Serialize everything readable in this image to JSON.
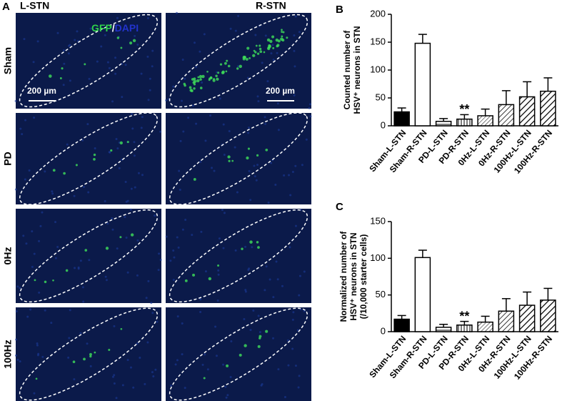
{
  "panel_a": {
    "letter": "A",
    "columns": [
      "L-STN",
      "R-STN"
    ],
    "rows": [
      "Sham",
      "PD",
      "0Hz",
      "100Hz"
    ],
    "stain": {
      "gfp": "GFP",
      "separator": "/",
      "dapi": "DAPI"
    },
    "scale_bars": [
      "200 µm",
      "200 µm"
    ]
  },
  "chart_data": [
    {
      "type": "bar",
      "panel": "B",
      "y_label": [
        "Counted number of",
        "HSV⁺ neurons in STN"
      ],
      "categories": [
        "Sham-L-STN",
        "Sham-R-STN",
        "PD-L-STN",
        "PD-R-STN",
        "0Hz-L-STN",
        "0Hz-R-STN",
        "100Hz-L-STN",
        "100Hz-R-STN"
      ],
      "values": [
        25,
        148,
        8,
        12,
        18,
        38,
        52,
        62
      ],
      "errors": [
        7,
        16,
        5,
        8,
        12,
        25,
        27,
        24
      ],
      "patterns": [
        "solid",
        "none",
        "horizontal",
        "vertical",
        "diagonal-fine",
        "diagonal",
        "diagonal-bold",
        "diagonal-bold"
      ],
      "annotations": [
        {
          "text": "**",
          "category": "PD-R-STN"
        }
      ],
      "ylim": [
        0,
        200
      ],
      "yticks": [
        0,
        50,
        100,
        150,
        200
      ]
    },
    {
      "type": "bar",
      "panel": "C",
      "y_label": [
        "Normalized number of",
        "HSV⁺ neurons in STN",
        "(/10,000 starter cells)"
      ],
      "categories": [
        "Sham-L-STN",
        "Sham-R-STN",
        "PD-L-STN",
        "PD-R-STN",
        "0Hz-L-STN",
        "0Hz-R-STN",
        "100Hz-L-STN",
        "100Hz-R-STN"
      ],
      "values": [
        17,
        101,
        6,
        9,
        13,
        28,
        36,
        43
      ],
      "errors": [
        5,
        10,
        4,
        5,
        8,
        17,
        18,
        16
      ],
      "patterns": [
        "solid",
        "none",
        "horizontal",
        "vertical",
        "diagonal-fine",
        "diagonal",
        "diagonal-bold",
        "diagonal-bold"
      ],
      "annotations": [
        {
          "text": "**",
          "category": "PD-R-STN"
        }
      ],
      "ylim": [
        0,
        150
      ],
      "yticks": [
        0,
        50,
        100,
        150
      ]
    }
  ]
}
